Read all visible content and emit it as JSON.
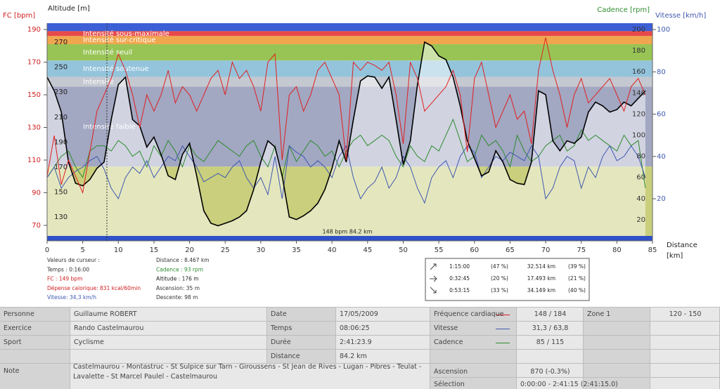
{
  "chart_data": {
    "type": "line",
    "annotation": "148 bpm 84.2 km",
    "xlabel": [
      "Distance",
      "[km]"
    ],
    "xlim": [
      0,
      85
    ],
    "xticks": [
      0,
      5,
      10,
      15,
      20,
      25,
      30,
      35,
      40,
      45,
      50,
      55,
      60,
      65,
      70,
      75,
      80,
      85
    ],
    "x": [
      0,
      1,
      2,
      3,
      4,
      5,
      6,
      7,
      8,
      9,
      10,
      11,
      12,
      13,
      14,
      15,
      16,
      17,
      18,
      19,
      20,
      21,
      22,
      23,
      24,
      25,
      26,
      27,
      28,
      29,
      30,
      31,
      32,
      33,
      34,
      35,
      36,
      37,
      38,
      39,
      40,
      41,
      42,
      43,
      44,
      45,
      46,
      47,
      48,
      49,
      50,
      51,
      52,
      53,
      54,
      55,
      56,
      57,
      58,
      59,
      60,
      61,
      62,
      63,
      64,
      65,
      66,
      67,
      68,
      69,
      70,
      71,
      72,
      73,
      74,
      75,
      76,
      77,
      78,
      79,
      80,
      81,
      82,
      83,
      84
    ],
    "zones": [
      {
        "range": [
          189,
          193.9
        ],
        "color": "#3d5fd6"
      },
      {
        "label": "Intensité sous-maximale",
        "range": [
          186,
          189
        ],
        "color": "#e64a4a"
      },
      {
        "label": "Intensité sur-critique",
        "range": [
          181,
          186
        ],
        "color": "#f0a64e"
      },
      {
        "label": "Intensité seuil",
        "range": [
          171,
          181
        ],
        "color": "#98c455"
      },
      {
        "label": "Intensité soutenue",
        "range": [
          161,
          171
        ],
        "color": "#94c4dc"
      },
      {
        "label": "Intensité",
        "range": [
          155,
          161
        ],
        "color": "#c4c8d0"
      },
      {
        "label": "Intensité faible",
        "range": [
          106,
          155
        ],
        "color": "#a2a7c2"
      },
      {
        "range": [
          61.8,
          106
        ],
        "color": "#c9cf7c"
      }
    ],
    "series": [
      {
        "name": "FC [bpm]",
        "color": "#e02020",
        "ylim": [
          61.8,
          193.9
        ],
        "yticks": [
          70,
          90,
          110,
          130,
          150,
          170,
          190
        ],
        "values": [
          100,
          125,
          95,
          110,
          100,
          90,
          115,
          140,
          150,
          160,
          175,
          165,
          150,
          130,
          150,
          140,
          150,
          165,
          145,
          155,
          150,
          140,
          150,
          160,
          165,
          150,
          170,
          160,
          165,
          155,
          140,
          170,
          175,
          110,
          150,
          155,
          140,
          150,
          165,
          170,
          160,
          150,
          110,
          170,
          165,
          170,
          168,
          165,
          170,
          150,
          120,
          170,
          160,
          140,
          145,
          150,
          155,
          165,
          150,
          115,
          160,
          170,
          150,
          130,
          140,
          150,
          135,
          140,
          120,
          165,
          185,
          165,
          150,
          130,
          150,
          160,
          145,
          150,
          155,
          160,
          150,
          140,
          155,
          160,
          150
        ]
      },
      {
        "name": "Altitude [m]",
        "color": "#000000",
        "ylim": [
          112.6,
          285.2
        ],
        "yticks": [
          130,
          150,
          170,
          190,
          210,
          230,
          250,
          270
        ],
        "values": [
          242,
          231,
          214,
          174,
          157,
          155,
          160,
          169,
          174,
          208,
          236,
          242,
          208,
          203,
          186,
          194,
          180,
          163,
          160,
          180,
          189,
          163,
          135,
          125,
          123,
          125,
          127,
          130,
          135,
          152,
          174,
          191,
          186,
          163,
          130,
          128,
          131,
          135,
          141,
          152,
          169,
          191,
          174,
          208,
          239,
          243,
          242,
          233,
          242,
          208,
          172,
          191,
          236,
          270,
          267,
          259,
          256,
          242,
          219,
          191,
          177,
          163,
          166,
          183,
          174,
          160,
          157,
          156,
          174,
          231,
          228,
          191,
          183,
          191,
          189,
          194,
          214,
          222,
          219,
          214,
          216,
          222,
          219,
          225,
          231
        ]
      },
      {
        "name": "Cadence [rpm]",
        "color": "#2e8b2e",
        "ylim": [
          2,
          206
        ],
        "yticks": [
          20,
          40,
          60,
          80,
          100,
          120,
          140,
          160,
          180,
          200
        ],
        "values": [
          60,
          70,
          80,
          85,
          70,
          60,
          85,
          90,
          90,
          85,
          95,
          90,
          80,
          85,
          70,
          90,
          80,
          95,
          85,
          70,
          90,
          80,
          75,
          85,
          95,
          90,
          85,
          80,
          90,
          95,
          80,
          70,
          90,
          60,
          90,
          75,
          85,
          95,
          90,
          80,
          85,
          70,
          85,
          95,
          100,
          90,
          95,
          100,
          95,
          80,
          70,
          90,
          80,
          75,
          90,
          85,
          100,
          115,
          95,
          75,
          80,
          100,
          90,
          95,
          85,
          70,
          100,
          85,
          75,
          80,
          90,
          95,
          100,
          85,
          90,
          105,
          95,
          100,
          95,
          90,
          85,
          100,
          90,
          95,
          50
        ]
      },
      {
        "name": "Vitesse [km/h]",
        "color": "#4058b0",
        "ylim": [
          1.1,
          103
        ],
        "yticks": [
          20,
          40,
          60,
          80,
          100
        ],
        "values": [
          30,
          35,
          25,
          30,
          33,
          35,
          38,
          40,
          34,
          25,
          20,
          30,
          35,
          32,
          38,
          30,
          35,
          40,
          38,
          45,
          40,
          35,
          28,
          30,
          32,
          30,
          35,
          38,
          30,
          25,
          30,
          22,
          40,
          20,
          45,
          42,
          40,
          35,
          38,
          35,
          30,
          40,
          45,
          30,
          20,
          25,
          28,
          35,
          25,
          30,
          40,
          35,
          25,
          18,
          30,
          35,
          38,
          30,
          40,
          45,
          42,
          30,
          35,
          40,
          38,
          42,
          40,
          38,
          45,
          40,
          20,
          25,
          35,
          40,
          38,
          25,
          35,
          30,
          40,
          45,
          38,
          40,
          45,
          40,
          30
        ]
      }
    ]
  },
  "cursor": {
    "left": [
      "Valeurs de curseur :",
      "Temps : 0:16:00",
      "FC : 149 bpm",
      "Dépense calorique: 831 kcal/60min",
      "Vitesse: 34,3 km/h"
    ],
    "right": [
      "Distance : 8.467 km",
      "Cadence : 93 rpm",
      "Altitude : 176 m",
      "Ascension: 35 m",
      "Descente: 98 m"
    ]
  },
  "segments": [
    [
      "1:15:00",
      "(47 %)",
      "32.514 km",
      "(39 %)"
    ],
    [
      "0:32:45",
      "(20 %)",
      "17.493 km",
      "(21 %)"
    ],
    [
      "0:53:15",
      "(33 %)",
      "34.149 km",
      "(40 %)"
    ]
  ],
  "table": {
    "rows": [
      [
        "Personne",
        "Guillaume ROBERT",
        "Date",
        "17/05/2009",
        "Fréquence cardiaque",
        "148 / 184",
        "Zone 1",
        "120 - 150"
      ],
      [
        "Exercice",
        "Rando Castelmaurou",
        "Temps",
        "08:06:25",
        "Vitesse",
        "31,3 / 63,8"
      ],
      [
        "Sport",
        "Cyclisme",
        "Durée",
        "2:41:23.9",
        "Cadence",
        "85 / 115"
      ],
      [
        "Distance",
        "84.2 km"
      ],
      [
        "Note",
        "Castelmaurou - Montastruc - St Sulpice sur Tarn - Giroussens - St Jean de Rives - Lugan - Pibres - Teulat - Lavalette - St Marcel Paulel - Castelmaurou",
        "Ascension",
        "870 (-0.3%)"
      ],
      [
        "Sélection",
        "0:00:00 - 2:41:15 (2:41:15.0)"
      ]
    ]
  }
}
